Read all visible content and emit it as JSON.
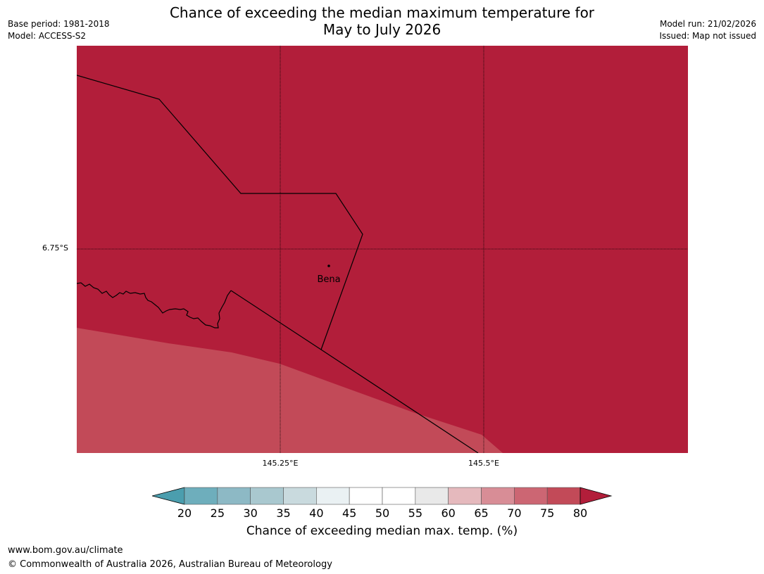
{
  "title": {
    "line1": "Chance of exceeding the median maximum temperature for",
    "line2": "May to July 2026"
  },
  "meta_left": {
    "base_period": "Base period: 1981-2018",
    "model": "Model: ACCESS-S2"
  },
  "meta_right": {
    "model_run": "Model run: 21/02/2026",
    "issued": "Issued: Map not issued"
  },
  "map": {
    "place": "Bena",
    "lat_label": "6.75°S",
    "lon_labels": [
      "145.25°E",
      "145.5°E"
    ],
    "colors": {
      "above_80": "#b21e3a",
      "band_75_80": "#c24a58",
      "border": "#000000"
    }
  },
  "colorbar": {
    "ticks": [
      "20",
      "25",
      "30",
      "35",
      "40",
      "45",
      "50",
      "55",
      "60",
      "65",
      "70",
      "75",
      "80"
    ],
    "under_color": "#4b9eae",
    "over_color": "#b21e3a",
    "band_colors": [
      "#6eaebc",
      "#8db9c5",
      "#a9c8cf",
      "#c9dade",
      "#eaf1f3",
      "#ffffff",
      "#ffffff",
      "#e9e9e9",
      "#e5b9bd",
      "#d88d96",
      "#cc6673",
      "#c24a58"
    ],
    "label": "Chance of exceeding median max. temp. (%)"
  },
  "footer": {
    "url": "www.bom.gov.au/climate",
    "copyright": "© Commonwealth of Australia 2026, Australian Bureau of Meteorology"
  }
}
